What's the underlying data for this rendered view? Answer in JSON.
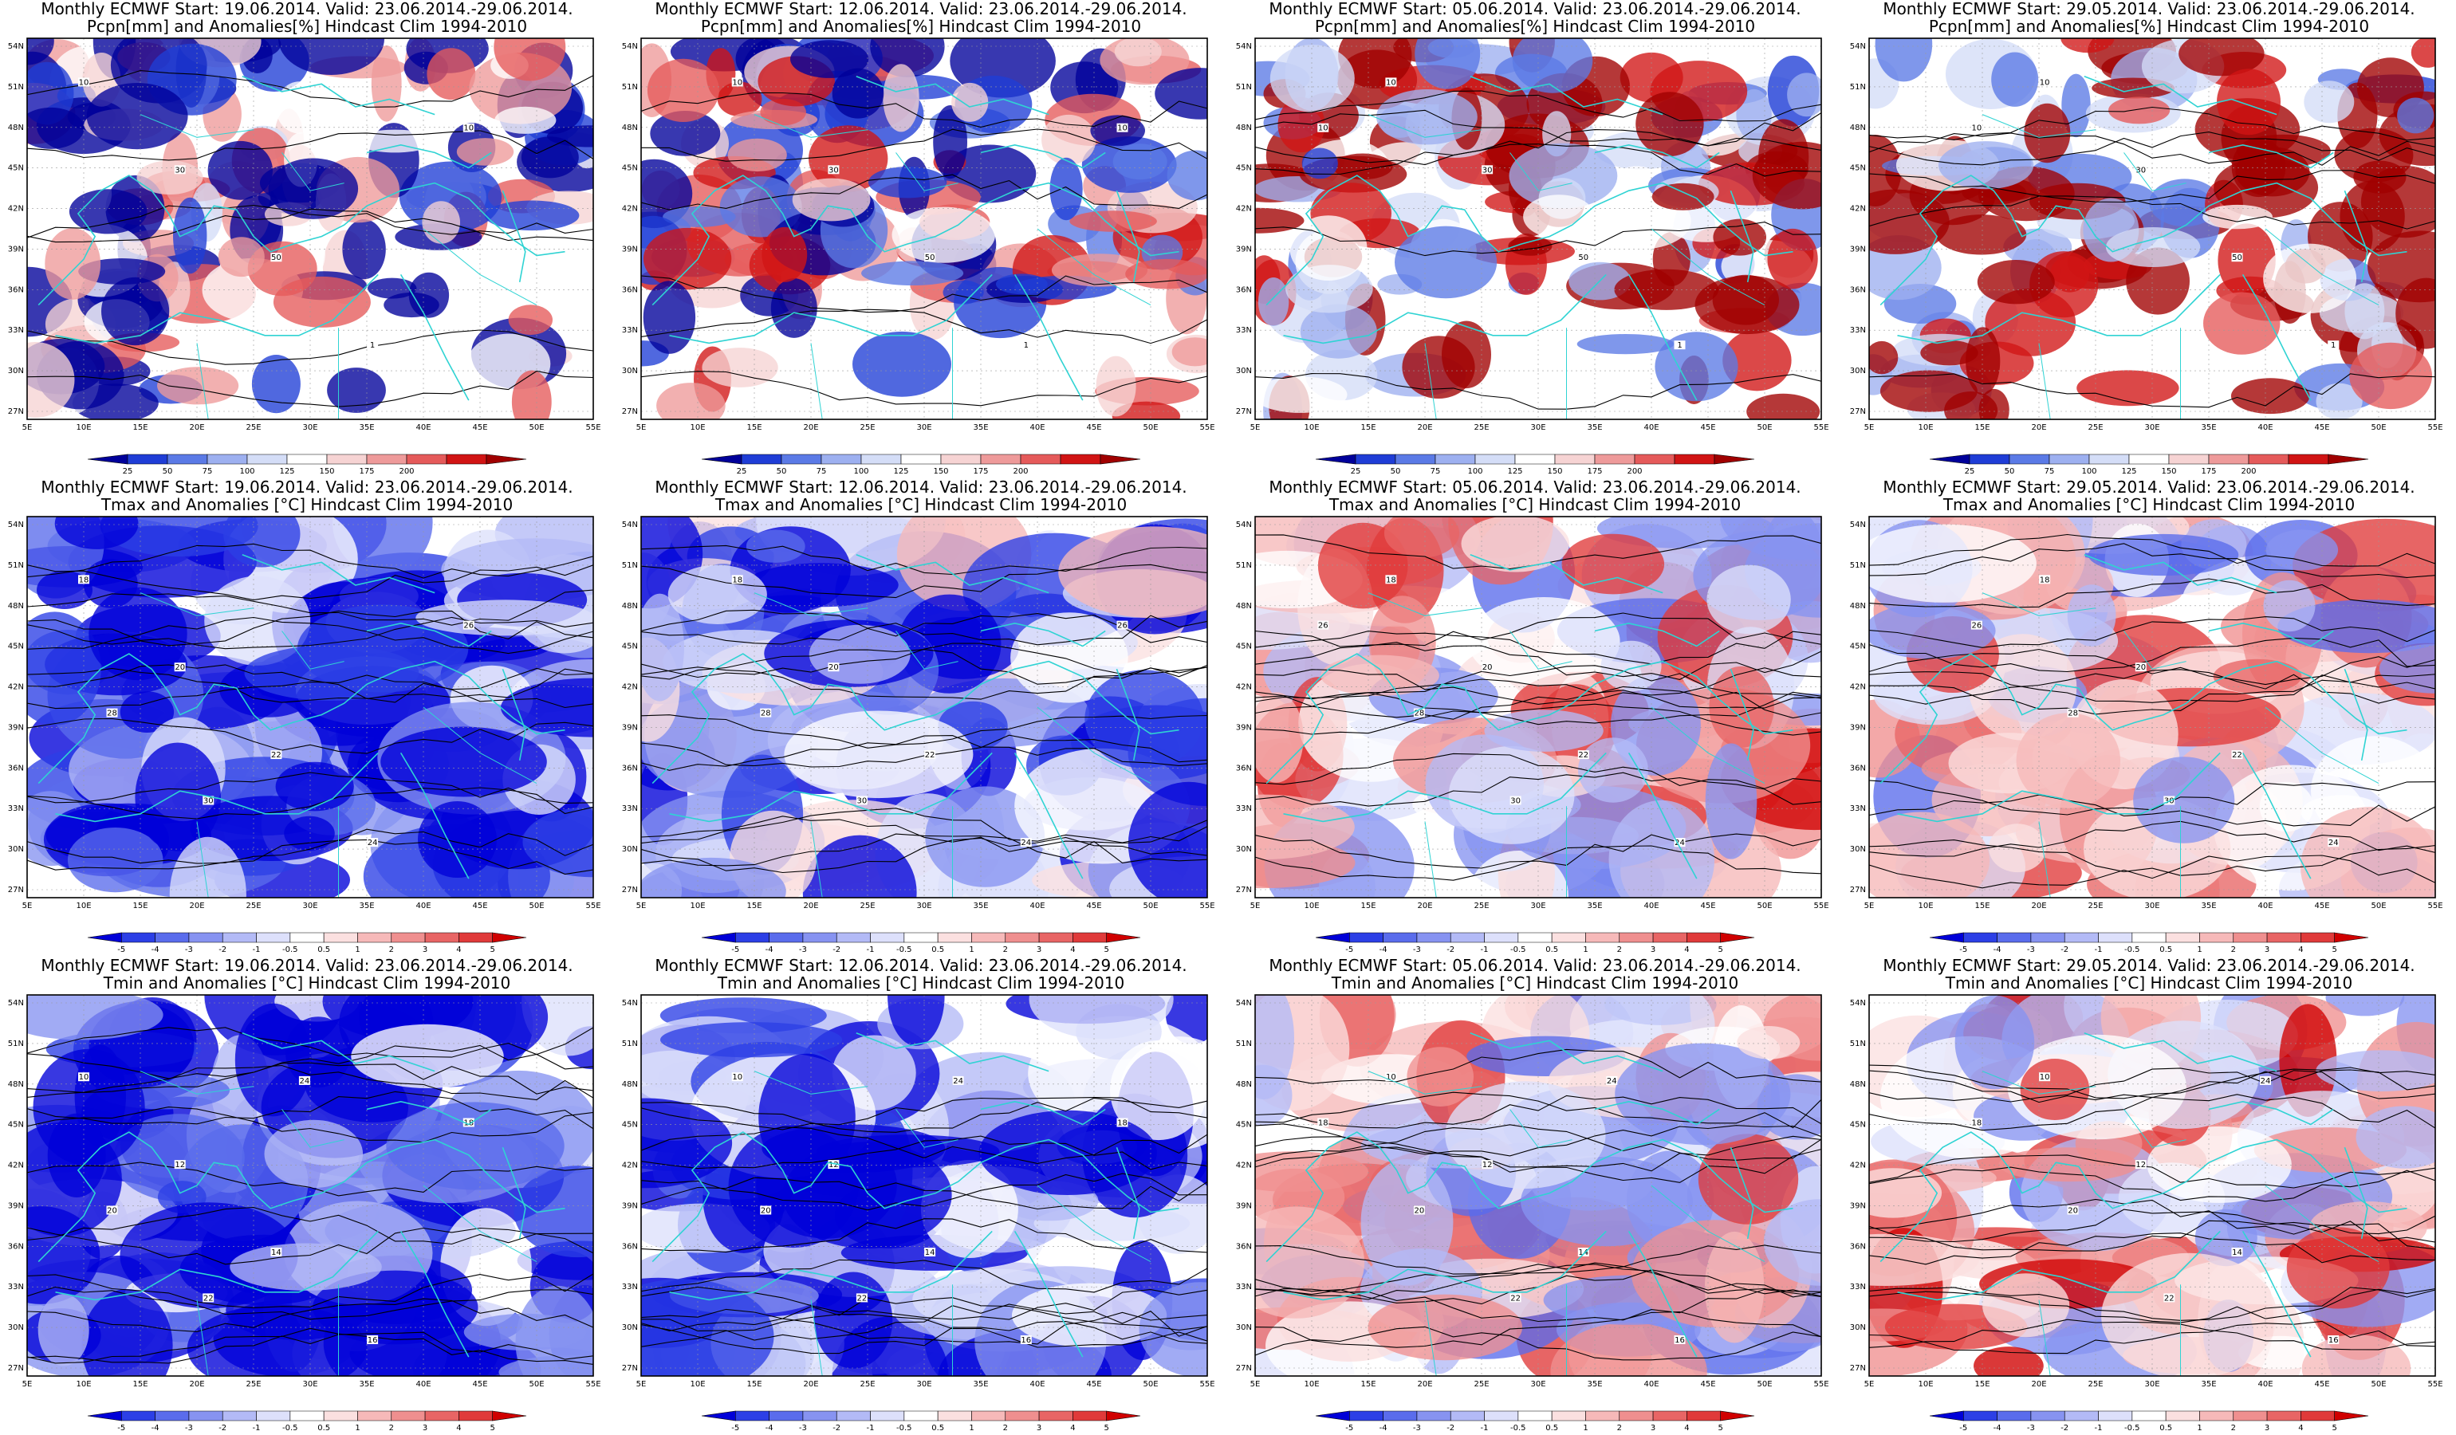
{
  "rows": [
    {
      "variable": "precip",
      "title_line2": "Pcpn[mm] and Anomalies[%] Hindcast Clim 1994-2010",
      "colorbar_labels": [
        "25",
        "50",
        "75",
        "100",
        "125",
        "150",
        "175",
        "200"
      ],
      "colors": [
        "#00009a",
        "#1f3dd6",
        "#5b7ae6",
        "#9db0f0",
        "#d4ddf7",
        "#ffffff",
        "#f6d3d3",
        "#ee9a9a",
        "#e55a5a",
        "#d11414",
        "#a00000"
      ]
    },
    {
      "variable": "tmax",
      "title_line2": "Tmax and Anomalies [°C] Hindcast Clim 1994-2010",
      "colorbar_labels": [
        "-5",
        "-4",
        "-3",
        "-2",
        "-1",
        "-0.5",
        "0.5",
        "1",
        "2",
        "3",
        "4",
        "5"
      ],
      "colors": [
        "#0000d8",
        "#2c3fe6",
        "#5a6cec",
        "#8793f1",
        "#b3baf6",
        "#dde0fb",
        "#ffffff",
        "#fbe0e0",
        "#f6b9b9",
        "#ef8f8f",
        "#e86565",
        "#e03a3a",
        "#d00000"
      ]
    },
    {
      "variable": "tmin",
      "title_line2": "Tmin and Anomalies [°C] Hindcast Clim 1994-2010",
      "colorbar_labels": [
        "-5",
        "-4",
        "-3",
        "-2",
        "-1",
        "-0.5",
        "0.5",
        "1",
        "2",
        "3",
        "4",
        "5"
      ],
      "colors": [
        "#0000d8",
        "#2c3fe6",
        "#5a6cec",
        "#8793f1",
        "#b3baf6",
        "#dde0fb",
        "#ffffff",
        "#fbe0e0",
        "#f6b9b9",
        "#ef8f8f",
        "#e86565",
        "#e03a3a",
        "#d00000"
      ]
    }
  ],
  "columns": [
    {
      "title_line1": "Monthly ECMWF Start: 19.06.2014. Valid: 23.06.2014.-29.06.2014."
    },
    {
      "title_line1": "Monthly ECMWF Start: 12.06.2014. Valid: 23.06.2014.-29.06.2014."
    },
    {
      "title_line1": "Monthly ECMWF Start: 05.06.2014. Valid: 23.06.2014.-29.06.2014."
    },
    {
      "title_line1": "Monthly ECMWF Start: 29.05.2014. Valid: 23.06.2014.-29.06.2014."
    }
  ],
  "lat_ticks": [
    "54N",
    "51N",
    "48N",
    "45N",
    "42N",
    "39N",
    "36N",
    "33N",
    "30N",
    "27N"
  ],
  "lon_ticks": [
    "5E",
    "10E",
    "15E",
    "20E",
    "25E",
    "30E",
    "35E",
    "40E",
    "45E",
    "50E",
    "55E"
  ],
  "anomaly_level": [
    [
      -0.7,
      -0.35,
      0.6,
      0.6
    ],
    [
      -0.8,
      -0.5,
      0.15,
      0.15
    ],
    [
      -0.8,
      -0.7,
      0.1,
      0.2
    ]
  ],
  "contour_labels": {
    "precip": [
      "10",
      "30",
      "50",
      "1",
      "10"
    ],
    "tmax": [
      "18",
      "20",
      "22",
      "24",
      "26",
      "28",
      "30"
    ],
    "tmin": [
      "10",
      "12",
      "14",
      "16",
      "18",
      "20",
      "22",
      "24"
    ]
  },
  "theme": {
    "coast": "#2fd3d3",
    "contour": "#000000",
    "frame": "#000000"
  }
}
